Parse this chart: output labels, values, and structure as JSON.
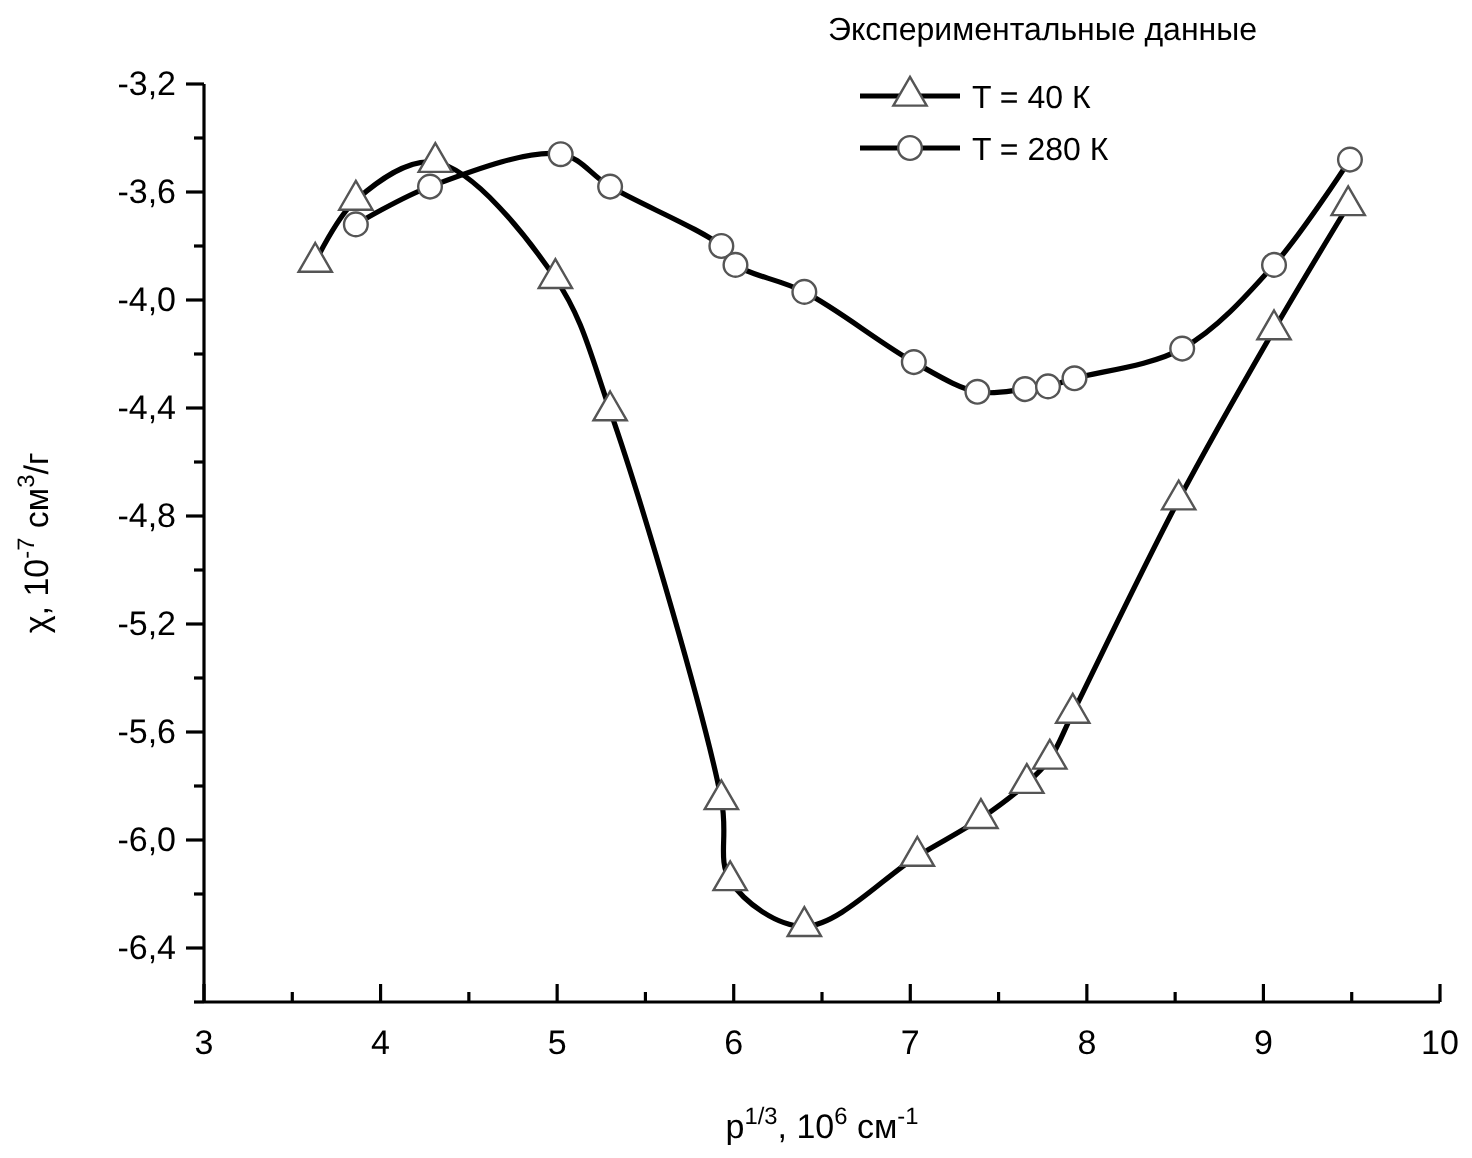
{
  "chart_data": {
    "type": "line",
    "xlabel": "p$^{1/3}$, 10$^{6}$ см$^{-1}$",
    "ylabel": "χ, 10$^{-7}$ см$^{3}$/г",
    "legend_title": "Экспериментальные данные",
    "legend": "top right",
    "grid": false,
    "line_style": "solid",
    "xlim": [
      3,
      10
    ],
    "xticks": [
      3,
      {
        "value": 3.5,
        "label": null
      },
      4,
      {
        "value": 4.5,
        "label": null
      },
      5,
      {
        "value": 5.5,
        "label": null
      },
      6,
      {
        "value": 6.5,
        "label": null
      },
      7,
      {
        "value": 7.5,
        "label": null
      },
      8,
      {
        "value": 8.5,
        "label": null
      },
      9,
      {
        "value": 9.5,
        "label": null
      },
      10
    ],
    "ylim": [
      -6.6,
      -3.2
    ],
    "yticks": [
      {
        "value": -3.2,
        "label": "-3,2"
      },
      {
        "value": -3.4,
        "label": null
      },
      {
        "value": -3.6,
        "label": "-3,6"
      },
      {
        "value": -3.8,
        "label": null
      },
      {
        "value": -4.0,
        "label": "-4,0"
      },
      {
        "value": -4.2,
        "label": null
      },
      {
        "value": -4.4,
        "label": "-4,4"
      },
      {
        "value": -4.6,
        "label": null
      },
      {
        "value": -4.8,
        "label": "-4,8"
      },
      {
        "value": -5.0,
        "label": null
      },
      {
        "value": -5.2,
        "label": "-5,2"
      },
      {
        "value": -5.4,
        "label": null
      },
      {
        "value": -5.6,
        "label": "-5,6"
      },
      {
        "value": -5.8,
        "label": null
      },
      {
        "value": -6.0,
        "label": "-6,0"
      },
      {
        "value": -6.2,
        "label": null
      },
      {
        "value": -6.4,
        "label": "-6,4"
      },
      {
        "value": -6.6,
        "label": null
      }
    ],
    "series": [
      {
        "name": "T = 40 К",
        "color": "#000000",
        "marker": "triangle",
        "x": [
          3.63,
          3.86,
          4.31,
          4.99,
          5.3,
          5.93,
          5.98,
          6.4,
          7.04,
          7.4,
          7.66,
          7.79,
          7.92,
          8.52,
          9.06,
          9.48
        ],
        "values": [
          -3.86,
          -3.63,
          -3.49,
          -3.92,
          -4.41,
          -5.85,
          -6.15,
          -6.32,
          -6.06,
          -5.92,
          -5.79,
          -5.7,
          -5.53,
          -4.74,
          -4.11,
          -3.65
        ]
      },
      {
        "name": "T = 280 К",
        "color": "#000000",
        "marker": "circle",
        "x": [
          3.86,
          4.28,
          5.02,
          5.3,
          5.93,
          6.01,
          6.4,
          7.02,
          7.38,
          7.65,
          7.78,
          7.93,
          8.54,
          9.06,
          9.49
        ],
        "values": [
          -3.72,
          -3.58,
          -3.46,
          -3.58,
          -3.8,
          -3.87,
          -3.97,
          -4.23,
          -4.34,
          -4.33,
          -4.32,
          -4.29,
          -4.18,
          -3.87,
          -3.48
        ]
      }
    ]
  }
}
